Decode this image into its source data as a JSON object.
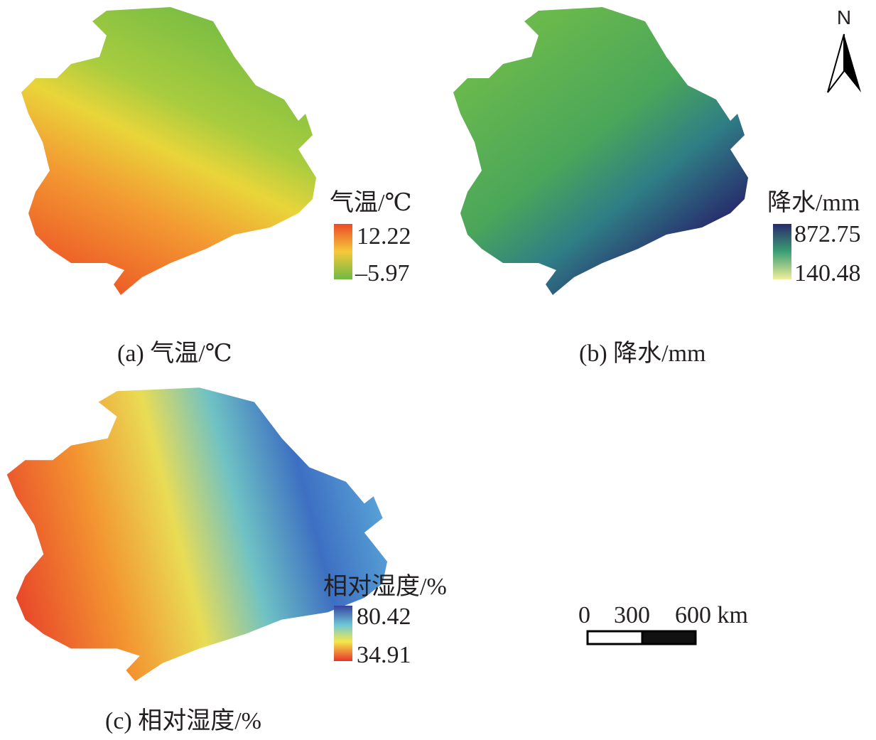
{
  "panels": [
    {
      "caption": "(a) 气温/℃",
      "legend": {
        "title": "气温/℃",
        "max": "12.22",
        "min": "–5.97"
      }
    },
    {
      "caption": "(b) 降水/mm",
      "legend": {
        "title": "降水/mm",
        "max": "872.75",
        "min": "140.48"
      }
    },
    {
      "caption": "(c) 相对湿度/%",
      "legend": {
        "title": "相对湿度/%",
        "max": "80.42",
        "min": "34.91"
      }
    }
  ],
  "north_arrow": {
    "label": "N"
  },
  "scale_bar": {
    "labels": [
      "0",
      "300",
      "600 km"
    ]
  }
}
